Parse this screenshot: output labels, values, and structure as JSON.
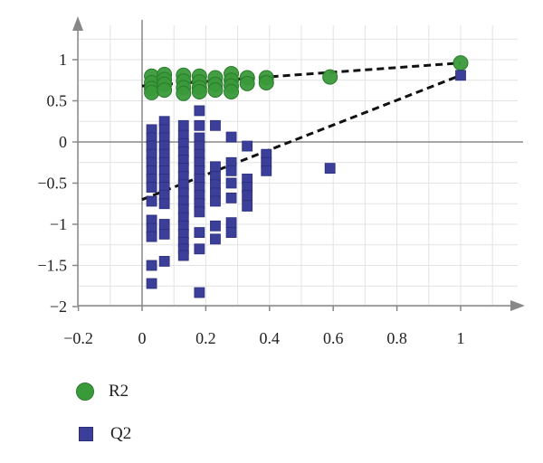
{
  "chart_data": {
    "type": "scatter",
    "title": "",
    "xlabel": "",
    "ylabel": "",
    "xlim": [
      -0.2,
      1.2
    ],
    "ylim": [
      -2,
      1.4
    ],
    "x_ticks": [
      -0.2,
      0,
      0.2,
      0.4,
      0.6,
      0.8,
      1
    ],
    "x_tick_labels": [
      "−0.2",
      "0",
      "0.2",
      "0.4",
      "0.6",
      "0.8",
      "1"
    ],
    "y_ticks": [
      1,
      0.5,
      0,
      -0.5,
      -1,
      -1.5,
      -2
    ],
    "y_tick_labels": [
      "1",
      "0.5",
      "0",
      "−0.5",
      "−1",
      "−1.5",
      "−2"
    ],
    "grid": true,
    "legend_position": "bottom-left",
    "colors": {
      "R2": "#3a9a3a",
      "Q2": "#3b3f9a",
      "axis": "#888888",
      "grid": "#e3e3e3",
      "trend": "#111111"
    },
    "series": [
      {
        "name": "R2",
        "marker": "circle",
        "points": [
          [
            0.03,
            0.8
          ],
          [
            0.03,
            0.72
          ],
          [
            0.03,
            0.65
          ],
          [
            0.03,
            0.6
          ],
          [
            0.07,
            0.82
          ],
          [
            0.07,
            0.76
          ],
          [
            0.07,
            0.7
          ],
          [
            0.07,
            0.63
          ],
          [
            0.13,
            0.81
          ],
          [
            0.13,
            0.74
          ],
          [
            0.13,
            0.66
          ],
          [
            0.13,
            0.59
          ],
          [
            0.18,
            0.8
          ],
          [
            0.18,
            0.73
          ],
          [
            0.18,
            0.66
          ],
          [
            0.18,
            0.61
          ],
          [
            0.23,
            0.78
          ],
          [
            0.23,
            0.7
          ],
          [
            0.23,
            0.63
          ],
          [
            0.28,
            0.83
          ],
          [
            0.28,
            0.75
          ],
          [
            0.28,
            0.68
          ],
          [
            0.28,
            0.61
          ],
          [
            0.33,
            0.78
          ],
          [
            0.33,
            0.71
          ],
          [
            0.39,
            0.78
          ],
          [
            0.39,
            0.72
          ],
          [
            0.59,
            0.79
          ],
          [
            1.0,
            0.96
          ]
        ],
        "trend": [
          [
            0.0,
            0.68
          ],
          [
            1.0,
            0.96
          ]
        ]
      },
      {
        "name": "Q2",
        "marker": "square",
        "points": [
          [
            0.03,
            0.15
          ],
          [
            0.03,
            0.05
          ],
          [
            0.03,
            -0.05
          ],
          [
            0.03,
            -0.15
          ],
          [
            0.03,
            -0.25
          ],
          [
            0.03,
            -0.35
          ],
          [
            0.03,
            -0.45
          ],
          [
            0.03,
            -0.55
          ],
          [
            0.03,
            -0.72
          ],
          [
            0.03,
            -0.95
          ],
          [
            0.03,
            -1.05
          ],
          [
            0.03,
            -1.15
          ],
          [
            0.03,
            -1.5
          ],
          [
            0.03,
            -1.72
          ],
          [
            0.07,
            0.25
          ],
          [
            0.07,
            0.15
          ],
          [
            0.07,
            0.05
          ],
          [
            0.07,
            -0.05
          ],
          [
            0.07,
            -0.15
          ],
          [
            0.07,
            -0.25
          ],
          [
            0.07,
            -0.35
          ],
          [
            0.07,
            -0.45
          ],
          [
            0.07,
            -0.55
          ],
          [
            0.07,
            -0.65
          ],
          [
            0.07,
            -0.75
          ],
          [
            0.07,
            -1.0
          ],
          [
            0.07,
            -1.12
          ],
          [
            0.07,
            -1.45
          ],
          [
            0.13,
            0.2
          ],
          [
            0.13,
            0.08
          ],
          [
            0.13,
            -0.02
          ],
          [
            0.13,
            -0.12
          ],
          [
            0.13,
            -0.22
          ],
          [
            0.13,
            -0.32
          ],
          [
            0.13,
            -0.42
          ],
          [
            0.13,
            -0.52
          ],
          [
            0.13,
            -0.62
          ],
          [
            0.13,
            -0.72
          ],
          [
            0.13,
            -0.82
          ],
          [
            0.13,
            -0.92
          ],
          [
            0.13,
            -1.02
          ],
          [
            0.13,
            -1.12
          ],
          [
            0.13,
            -1.22
          ],
          [
            0.13,
            -1.3
          ],
          [
            0.13,
            -1.38
          ],
          [
            0.18,
            0.38
          ],
          [
            0.18,
            0.2
          ],
          [
            0.18,
            0.05
          ],
          [
            0.18,
            -0.05
          ],
          [
            0.18,
            -0.15
          ],
          [
            0.18,
            -0.25
          ],
          [
            0.18,
            -0.35
          ],
          [
            0.18,
            -0.45
          ],
          [
            0.18,
            -0.55
          ],
          [
            0.18,
            -0.65
          ],
          [
            0.18,
            -0.75
          ],
          [
            0.18,
            -0.85
          ],
          [
            0.18,
            -1.1
          ],
          [
            0.18,
            -1.3
          ],
          [
            0.18,
            -1.83
          ],
          [
            0.23,
            0.2
          ],
          [
            0.23,
            -0.3
          ],
          [
            0.23,
            -0.42
          ],
          [
            0.23,
            -0.52
          ],
          [
            0.23,
            -0.62
          ],
          [
            0.23,
            -0.72
          ],
          [
            0.23,
            -1.02
          ],
          [
            0.23,
            -1.18
          ],
          [
            0.28,
            0.06
          ],
          [
            0.28,
            -0.25
          ],
          [
            0.28,
            -0.35
          ],
          [
            0.28,
            -0.5
          ],
          [
            0.28,
            -0.68
          ],
          [
            0.28,
            -0.98
          ],
          [
            0.28,
            -1.1
          ],
          [
            0.33,
            -0.05
          ],
          [
            0.33,
            -0.45
          ],
          [
            0.33,
            -0.55
          ],
          [
            0.33,
            -0.65
          ],
          [
            0.33,
            -0.78
          ],
          [
            0.39,
            -0.15
          ],
          [
            0.39,
            -0.25
          ],
          [
            0.39,
            -0.35
          ],
          [
            0.59,
            -0.32
          ],
          [
            1.0,
            0.81
          ]
        ],
        "trend": [
          [
            0.0,
            -0.7
          ],
          [
            1.0,
            0.81
          ]
        ]
      }
    ]
  },
  "legend": {
    "items": [
      {
        "label": "R2"
      },
      {
        "label": "Q2"
      }
    ]
  }
}
